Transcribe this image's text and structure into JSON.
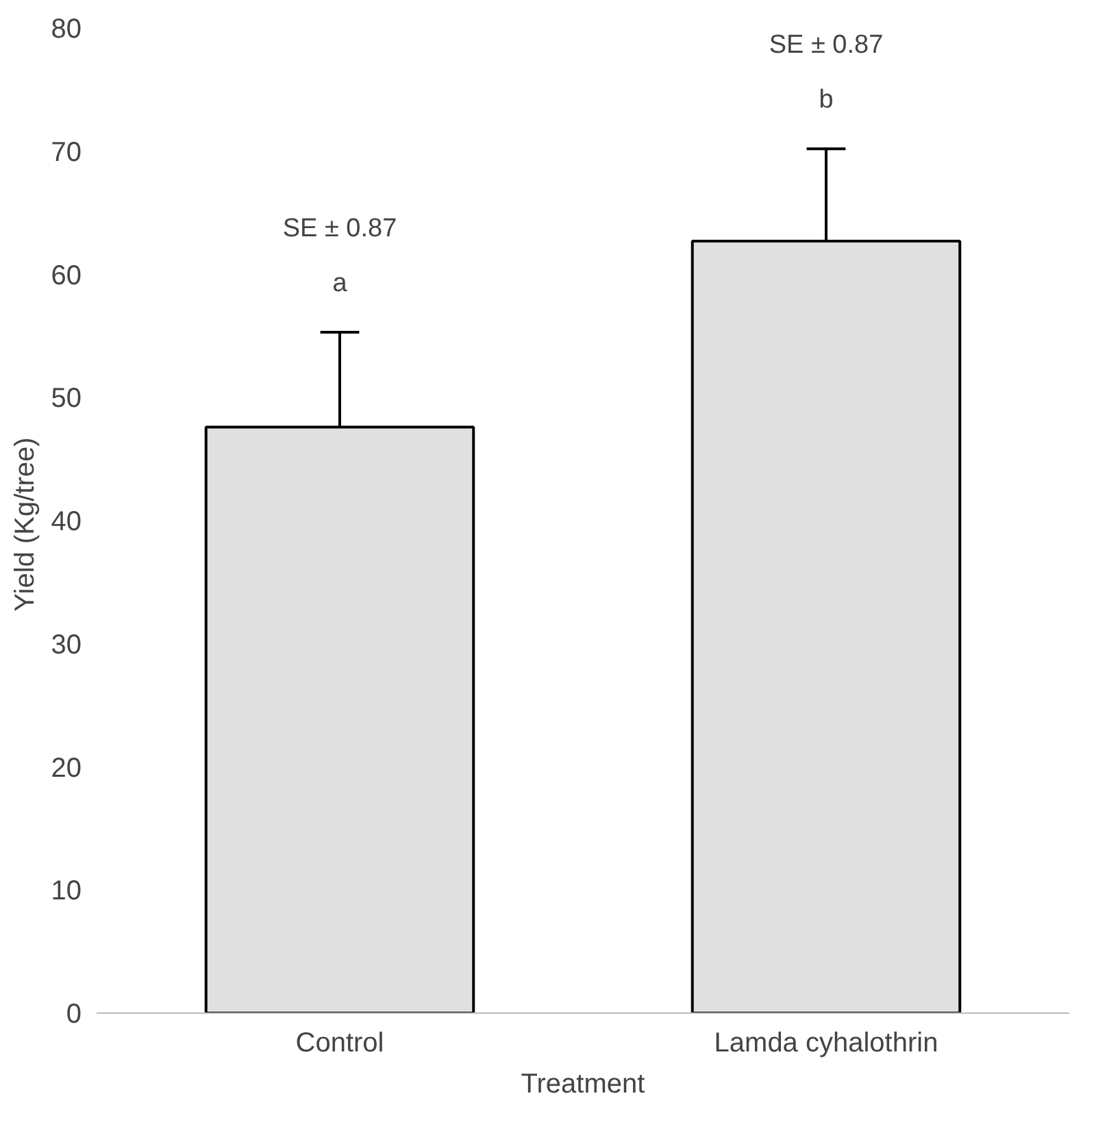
{
  "chart_data": {
    "type": "bar",
    "xlabel": "Treatment",
    "ylabel": "Yield  (Kg/tree)",
    "categories": [
      "Control",
      "Lamda cyhalothrin"
    ],
    "values": [
      47.6,
      62.7
    ],
    "color": "#e0e0e0",
    "errors": [
      [
        47.6,
        55.3
      ],
      [
        62.7,
        70.2
      ]
    ],
    "ylim": [
      0,
      80
    ],
    "yticks": [
      0,
      10,
      20,
      30,
      40,
      50,
      60,
      70,
      80
    ],
    "grid": false,
    "annotations": [
      "SE ± 0.87",
      "a",
      "SE ± 0.87",
      "b"
    ]
  }
}
